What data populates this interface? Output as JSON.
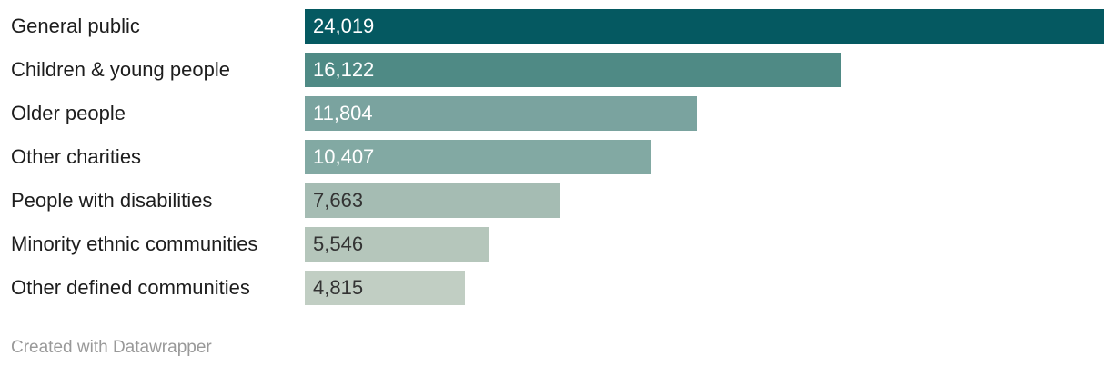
{
  "chart_data": {
    "type": "bar",
    "orientation": "horizontal",
    "categories": [
      "General public",
      "Children & young people",
      "Older people",
      "Other charities",
      "People with disabilities",
      "Minority ethnic communities",
      "Other defined communities"
    ],
    "values": [
      24019,
      16122,
      11804,
      10407,
      7663,
      5546,
      4815
    ],
    "value_labels": [
      "24,019",
      "16,122",
      "11,804",
      "10,407",
      "7,663",
      "5,546",
      "4,815"
    ],
    "bar_colors": [
      "#055961",
      "#4f8a85",
      "#7aa39f",
      "#82a9a3",
      "#a5bcb3",
      "#b5c6bb",
      "#c1cec3"
    ],
    "value_label_colors": [
      "#ffffff",
      "#ffffff",
      "#ffffff",
      "#ffffff",
      "#333333",
      "#333333",
      "#333333"
    ],
    "xlim": [
      0,
      24019
    ],
    "title": "",
    "xlabel": "",
    "ylabel": "",
    "grid": false,
    "legend": false
  },
  "footer": {
    "credit": "Created with Datawrapper"
  },
  "colors": {
    "background": "#ffffff",
    "category_label": "#1d1d1d",
    "credit": "#999999"
  }
}
